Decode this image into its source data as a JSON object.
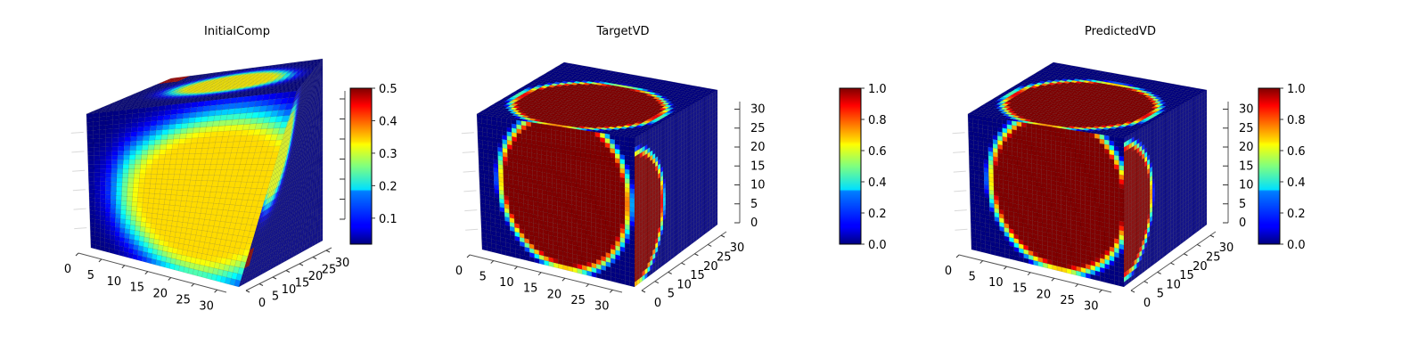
{
  "chart_data": [
    {
      "type": "heatmap",
      "title": "InitialComp",
      "grid_size": 32,
      "x_ticks": [
        "0",
        "5",
        "10",
        "15",
        "20",
        "25",
        "30"
      ],
      "y_ticks": [
        "0",
        "5",
        "10",
        "15",
        "20",
        "25",
        "30"
      ],
      "z_ticks": [],
      "colorbar": {
        "min": 0.02,
        "max": 0.5,
        "ticks": [
          "0.1",
          "0.2",
          "0.3",
          "0.4",
          "0.5"
        ],
        "tick_values": [
          0.1,
          0.2,
          0.3,
          0.4,
          0.5
        ],
        "colormap": "jet"
      },
      "field": "initial"
    },
    {
      "type": "heatmap",
      "title": "TargetVD",
      "grid_size": 32,
      "x_ticks": [
        "0",
        "5",
        "10",
        "15",
        "20",
        "25",
        "30"
      ],
      "y_ticks": [
        "0",
        "5",
        "10",
        "15",
        "20",
        "25",
        "30"
      ],
      "z_ticks": [
        "0",
        "5",
        "10",
        "15",
        "20",
        "25",
        "30"
      ],
      "colorbar": {
        "min": 0.0,
        "max": 1.0,
        "ticks": [
          "0.0",
          "0.2",
          "0.4",
          "0.6",
          "0.8",
          "1.0"
        ],
        "tick_values": [
          0,
          0.2,
          0.4,
          0.6,
          0.8,
          1.0
        ],
        "colormap": "jet"
      },
      "field": "target"
    },
    {
      "type": "heatmap",
      "title": "PredictedVD",
      "grid_size": 32,
      "x_ticks": [
        "0",
        "5",
        "10",
        "15",
        "20",
        "25",
        "30"
      ],
      "y_ticks": [
        "0",
        "5",
        "10",
        "15",
        "20",
        "25",
        "30"
      ],
      "z_ticks": [
        "0",
        "5",
        "10",
        "15",
        "20",
        "25",
        "30"
      ],
      "colorbar": {
        "min": 0.0,
        "max": 1.0,
        "ticks": [
          "0.0",
          "0.2",
          "0.4",
          "0.6",
          "0.8",
          "1.0"
        ],
        "tick_values": [
          0,
          0.2,
          0.4,
          0.6,
          0.8,
          1.0
        ],
        "colormap": "jet"
      },
      "field": "predicted"
    }
  ]
}
